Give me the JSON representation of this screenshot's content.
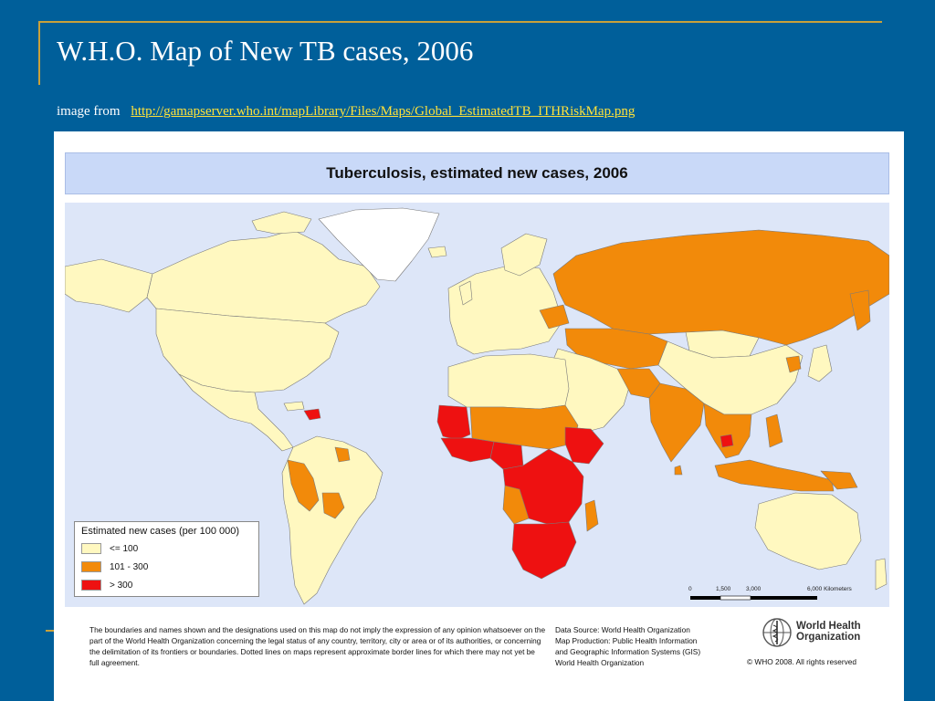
{
  "slide": {
    "title": "W.H.O. Map of New TB cases, 2006",
    "source_prefix": "image from",
    "source_url": "http://gamapserver.who.int/mapLibrary/Files/Maps/Global_EstimatedTB_ITHRiskMap.png"
  },
  "map": {
    "title": "Tuberculosis, estimated new cases, 2006",
    "colors": {
      "ocean": "#dde6f8",
      "low": "#fff8c0",
      "medium": "#f28a0a",
      "high": "#ee1111",
      "no_data": "#ffffff"
    },
    "legend": {
      "title": "Estimated new cases (per 100 000)",
      "items": [
        {
          "label": "<= 100",
          "color": "#fff8c0"
        },
        {
          "label": "101 - 300",
          "color": "#f28a0a"
        },
        {
          "label": "> 300",
          "color": "#ee1111"
        }
      ]
    },
    "scale": {
      "labels": [
        "0",
        "1,500",
        "3,000",
        "6,000 Kilometers"
      ]
    }
  },
  "footer": {
    "disclaimer": "The boundaries and names shown and the designations used on this map do not imply the expression of any opinion whatsoever on the part of the World Health Organization concerning the legal status of any country, territory, city or area or of its authorities, or concerning the delimitation of its frontiers or boundaries.  Dotted lines on maps represent approximate border lines for which there may not yet be full agreement.",
    "data_source_lines": [
      "Data Source: World Health Organization",
      "Map Production: Public Health Information",
      "and Geographic Information Systems (GIS)",
      "World Health Organization"
    ],
    "org_name_line1": "World Health",
    "org_name_line2": "Organization",
    "copyright": "© WHO 2008. All rights reserved"
  }
}
